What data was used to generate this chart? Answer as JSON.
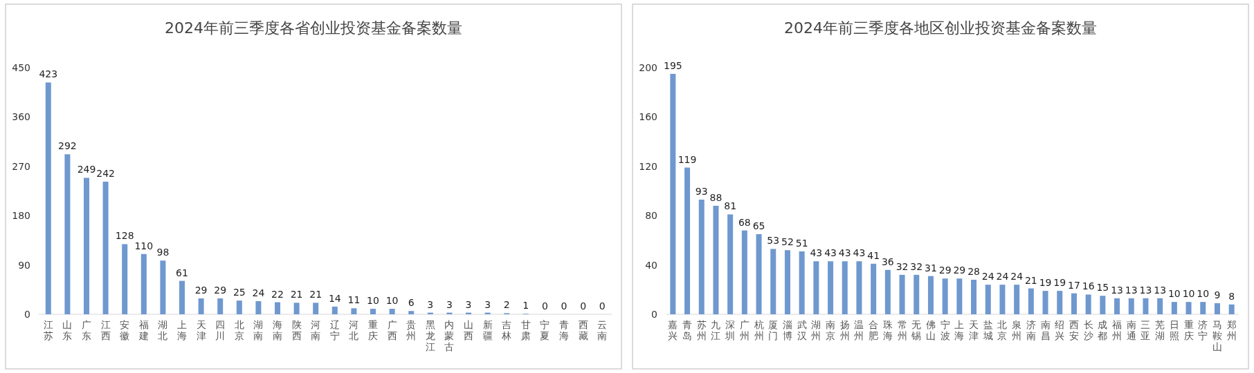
{
  "chart_data": [
    {
      "type": "bar",
      "title": "2024年前三季度各省创业投资基金备案数量",
      "categories": [
        "江苏",
        "山东",
        "广东",
        "江西",
        "安徽",
        "福建",
        "湖北",
        "上海",
        "天津",
        "四川",
        "北京",
        "湖南",
        "海南",
        "陕西",
        "河南",
        "辽宁",
        "河北",
        "重庆",
        "广西",
        "贵州",
        "黑龙江",
        "内蒙古",
        "山西",
        "新疆",
        "吉林",
        "甘肃",
        "宁夏",
        "青海",
        "西藏",
        "云南"
      ],
      "values": [
        423,
        292,
        249,
        242,
        128,
        110,
        98,
        61,
        29,
        29,
        25,
        24,
        22,
        21,
        21,
        14,
        11,
        10,
        10,
        6,
        3,
        3,
        3,
        3,
        2,
        1,
        0,
        0,
        0,
        0
      ],
      "color": "#6f98cf",
      "ylim": [
        0,
        450
      ],
      "yticks": [
        0,
        90,
        180,
        270,
        360,
        450
      ],
      "data_labels": true
    },
    {
      "type": "bar",
      "title": "2024年前三季度各地区创业投资基金备案数量",
      "categories": [
        "嘉兴",
        "青岛",
        "苏州",
        "九江",
        "深圳",
        "广州",
        "杭州",
        "厦门",
        "淄博",
        "武汉",
        "湖州",
        "南京",
        "扬州",
        "温州",
        "合肥",
        "珠海",
        "常州",
        "无锡",
        "佛山",
        "宁波",
        "上海",
        "天津",
        "盐城",
        "北京",
        "泉州",
        "济南",
        "南昌",
        "绍兴",
        "西安",
        "长沙",
        "成都",
        "福州",
        "南通",
        "三亚",
        "芜湖",
        "日照",
        "重庆",
        "济宁",
        "马鞍山",
        "郑州"
      ],
      "values": [
        195,
        119,
        93,
        88,
        81,
        68,
        65,
        53,
        52,
        51,
        43,
        43,
        43,
        43,
        41,
        36,
        32,
        32,
        31,
        29,
        29,
        28,
        24,
        24,
        24,
        21,
        19,
        19,
        17,
        16,
        15,
        13,
        13,
        13,
        13,
        10,
        10,
        10,
        9,
        8
      ],
      "color": "#6f98cf",
      "ylim": [
        0,
        200
      ],
      "yticks": [
        0,
        40,
        80,
        120,
        160,
        200
      ],
      "data_labels": true
    }
  ]
}
